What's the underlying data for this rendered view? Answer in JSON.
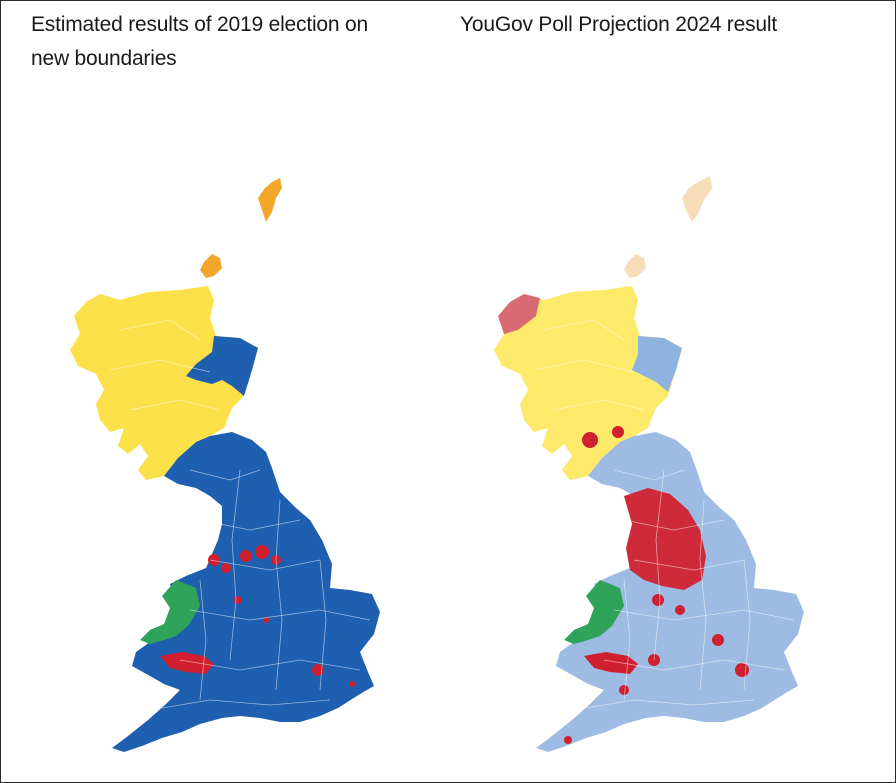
{
  "panels": [
    {
      "title": "Estimated results of 2019 election on new boundaries",
      "colors": {
        "scotland": "#fbe04a",
        "scotland_north": "#fbe04a",
        "northeast_scotland": "#1f5fb0",
        "england": "#1f5fb0",
        "north_england_inner": "#1f5fb0",
        "wales_north": "#2fa35a",
        "wales_south": "#d0202f",
        "northern_isles": "#f2a62a",
        "urban_dots": "#d0202f"
      }
    },
    {
      "title": "YouGov Poll Projection 2024 result",
      "colors": {
        "scotland": "#fde96a",
        "scotland_north": "#d86a72",
        "northeast_scotland": "#8fb3df",
        "england": "#9dbbe3",
        "north_england_inner": "#cf2a3a",
        "wales_north": "#2fa35a",
        "wales_south": "#d0202f",
        "northern_isles": "#f7dcb8",
        "urban_dots": "#d0202f"
      }
    }
  ]
}
